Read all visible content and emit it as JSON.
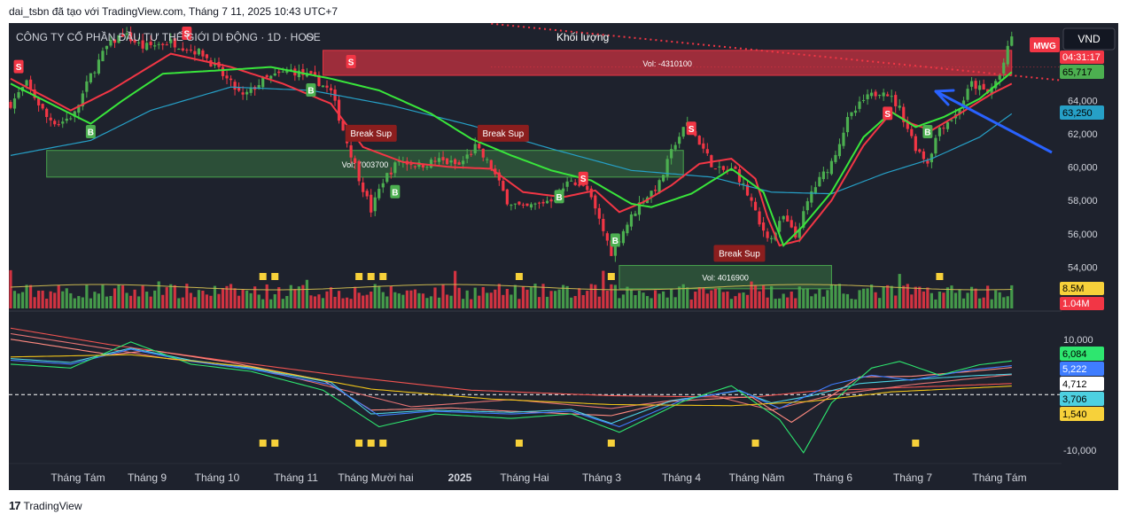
{
  "caption": "dai_tsbn đã tạo với TradingView.com, Tháng 7 11, 2025 10:43 UTC+7",
  "footer": {
    "logo_text": "17",
    "brand": "TradingView"
  },
  "header": {
    "symbol_line": "CÔNG TY CỔ PHẦN ĐẦU TƯ THẾ GIỚI DI ĐỘNG · 1D · HOSE",
    "ohlc_prefix": "O",
    "volume_label": "Khối lượng",
    "currency_button": "VND"
  },
  "price_tags": {
    "ticker": "MWG",
    "countdown": "04:31:17",
    "last_price": "65,717",
    "ma_value": "63,250",
    "volume_ma": "8.5M",
    "volume_last": "1.04M"
  },
  "colors": {
    "background": "#1e222d",
    "up": "#4caf50",
    "down": "#f23645",
    "ma_fast": "#f23645",
    "ma_mid": "#39e63b",
    "ma_slow": "#26a0c7",
    "zone_green": "#4caf50",
    "zone_red": "#f23645",
    "marker": "#f7d13a",
    "arrow": "#2962ff"
  },
  "chart_data": {
    "type": "candlestick",
    "x_labels": [
      "Tháng Tám",
      "Tháng 9",
      "Tháng 10",
      "Tháng 11",
      "Tháng Mười hai",
      "2025",
      "Tháng Hai",
      "Tháng 3",
      "Tháng 4",
      "Tháng Năm",
      "Tháng 6",
      "Tháng 7",
      "Tháng Tám"
    ],
    "y_ticks": [
      "64,000",
      "62,000",
      "60,000",
      "58,000",
      "56,000",
      "54,000"
    ],
    "ylim": [
      52800,
      68000
    ],
    "close_path": [
      [
        0,
        63800
      ],
      [
        4,
        65000
      ],
      [
        9,
        63000
      ],
      [
        12,
        62600
      ],
      [
        16,
        63200
      ],
      [
        20,
        65500
      ],
      [
        24,
        67200
      ],
      [
        28,
        68000
      ],
      [
        33,
        67200
      ],
      [
        40,
        67500
      ],
      [
        48,
        66800
      ],
      [
        53,
        65500
      ],
      [
        58,
        64200
      ],
      [
        63,
        65200
      ],
      [
        70,
        65800
      ],
      [
        76,
        65300
      ],
      [
        80,
        64500
      ],
      [
        84,
        61500
      ],
      [
        87,
        59400
      ],
      [
        90,
        57400
      ],
      [
        93,
        59200
      ],
      [
        97,
        60400
      ],
      [
        102,
        60100
      ],
      [
        107,
        60400
      ],
      [
        112,
        60100
      ],
      [
        116,
        61200
      ],
      [
        120,
        60000
      ],
      [
        124,
        58000
      ],
      [
        128,
        57500
      ],
      [
        132,
        57800
      ],
      [
        136,
        58200
      ],
      [
        140,
        59300
      ],
      [
        144,
        58600
      ],
      [
        147,
        56800
      ],
      [
        150,
        54900
      ],
      [
        153,
        56200
      ],
      [
        157,
        57800
      ],
      [
        162,
        59000
      ],
      [
        166,
        61500
      ],
      [
        169,
        62600
      ],
      [
        172,
        61500
      ],
      [
        176,
        59800
      ],
      [
        181,
        59800
      ],
      [
        185,
        57900
      ],
      [
        187,
        56500
      ],
      [
        190,
        55700
      ],
      [
        193,
        57000
      ],
      [
        196,
        55800
      ],
      [
        200,
        58500
      ],
      [
        205,
        60300
      ],
      [
        209,
        62800
      ],
      [
        213,
        64000
      ],
      [
        218,
        64700
      ],
      [
        222,
        63500
      ],
      [
        226,
        61200
      ],
      [
        229,
        60300
      ],
      [
        232,
        62400
      ],
      [
        236,
        63100
      ],
      [
        240,
        65000
      ],
      [
        244,
        64400
      ],
      [
        247,
        65500
      ],
      [
        250,
        67800
      ]
    ],
    "ma_fast": [
      [
        0,
        65300
      ],
      [
        15,
        63400
      ],
      [
        25,
        64600
      ],
      [
        40,
        66800
      ],
      [
        55,
        66000
      ],
      [
        68,
        65000
      ],
      [
        80,
        63800
      ],
      [
        88,
        61200
      ],
      [
        98,
        60300
      ],
      [
        110,
        60000
      ],
      [
        120,
        59900
      ],
      [
        128,
        58500
      ],
      [
        138,
        58200
      ],
      [
        146,
        58600
      ],
      [
        152,
        57300
      ],
      [
        158,
        57900
      ],
      [
        165,
        58900
      ],
      [
        172,
        60200
      ],
      [
        180,
        60500
      ],
      [
        186,
        59300
      ],
      [
        189,
        57000
      ],
      [
        192,
        55300
      ],
      [
        197,
        55600
      ],
      [
        205,
        58000
      ],
      [
        213,
        61300
      ],
      [
        220,
        63300
      ],
      [
        225,
        62600
      ],
      [
        230,
        62200
      ],
      [
        237,
        63200
      ],
      [
        245,
        64400
      ],
      [
        250,
        65000
      ]
    ],
    "ma_mid": [
      [
        0,
        65000
      ],
      [
        20,
        62600
      ],
      [
        28,
        64000
      ],
      [
        38,
        65600
      ],
      [
        52,
        65800
      ],
      [
        65,
        66000
      ],
      [
        80,
        65300
      ],
      [
        92,
        64600
      ],
      [
        105,
        63200
      ],
      [
        115,
        61700
      ],
      [
        125,
        60700
      ],
      [
        135,
        59800
      ],
      [
        145,
        59200
      ],
      [
        155,
        57800
      ],
      [
        160,
        57600
      ],
      [
        170,
        58400
      ],
      [
        180,
        59900
      ],
      [
        188,
        58500
      ],
      [
        193,
        55300
      ],
      [
        198,
        56500
      ],
      [
        205,
        58500
      ],
      [
        213,
        61800
      ],
      [
        220,
        63300
      ],
      [
        226,
        62400
      ],
      [
        233,
        63000
      ],
      [
        242,
        64100
      ],
      [
        250,
        65700
      ]
    ],
    "ma_slow": [
      [
        0,
        60700
      ],
      [
        20,
        61600
      ],
      [
        35,
        63400
      ],
      [
        55,
        64800
      ],
      [
        75,
        64600
      ],
      [
        95,
        63700
      ],
      [
        115,
        62500
      ],
      [
        135,
        61100
      ],
      [
        155,
        59800
      ],
      [
        175,
        59400
      ],
      [
        190,
        58500
      ],
      [
        205,
        58400
      ],
      [
        218,
        59600
      ],
      [
        230,
        60500
      ],
      [
        242,
        61800
      ],
      [
        250,
        63200
      ]
    ],
    "zones": [
      {
        "type": "support",
        "x0": 9,
        "x1": 168,
        "y_top": 61000,
        "y_bottom": 59400,
        "label": "Vol: 7003700"
      },
      {
        "type": "support",
        "x0": 152,
        "x1": 205,
        "y_top": 54100,
        "y_bottom": 52700,
        "label": "Vol: 4016900"
      },
      {
        "type": "resistance",
        "x0": 78,
        "x1": 250,
        "y_top": 67000,
        "y_bottom": 65500,
        "label": "Vol: -4310100"
      }
    ],
    "signals": [
      {
        "type": "S",
        "x": 2,
        "price": 66000
      },
      {
        "type": "B",
        "x": 20,
        "price": 62100
      },
      {
        "type": "S",
        "x": 44,
        "price": 68000
      },
      {
        "type": "B",
        "x": 75,
        "price": 64600
      },
      {
        "type": "S",
        "x": 85,
        "price": 66300
      },
      {
        "type": "B",
        "x": 96,
        "price": 58500
      },
      {
        "type": "B",
        "x": 137,
        "price": 58200
      },
      {
        "type": "S",
        "x": 143,
        "price": 59300
      },
      {
        "type": "B",
        "x": 151,
        "price": 55600
      },
      {
        "type": "S",
        "x": 170,
        "price": 62300
      },
      {
        "type": "S",
        "x": 219,
        "price": 63200
      },
      {
        "type": "B",
        "x": 229,
        "price": 62100
      }
    ],
    "break_labels": [
      {
        "text": "Break Sup",
        "x": 90,
        "price": 62000
      },
      {
        "text": "Break Sup",
        "x": 123,
        "price": 62000
      },
      {
        "text": "Break Sup",
        "x": 182,
        "price": 54800
      }
    ],
    "volume_markers_x": [
      63,
      66,
      87,
      90,
      93,
      127,
      150,
      232
    ],
    "indicator": {
      "y_ticks": [
        "10,000",
        "-10,000"
      ],
      "ylim": [
        -11000,
        13000
      ],
      "values": [
        "6,084",
        "5,222",
        "4,712",
        "3,706",
        "1,540"
      ],
      "markers_x": [
        63,
        66,
        87,
        90,
        93,
        127,
        150,
        186,
        226
      ],
      "lines": [
        {
          "name": "",
          "color": "#ef5350",
          "points": [
            [
              0,
              12000
            ],
            [
              25,
              9000
            ],
            [
              55,
              6000
            ],
            [
              85,
              3200
            ],
            [
              115,
              800
            ],
            [
              150,
              -200
            ],
            [
              185,
              -500
            ],
            [
              200,
              600
            ],
            [
              220,
              1200
            ],
            [
              250,
              2000
            ]
          ]
        },
        {
          "name": "",
          "color": "#e57373",
          "points": [
            [
              0,
              11000
            ],
            [
              25,
              8200
            ],
            [
              40,
              6400
            ],
            [
              60,
              5000
            ],
            [
              85,
              500
            ],
            [
              100,
              -2200
            ],
            [
              125,
              -900
            ],
            [
              150,
              -2500
            ],
            [
              175,
              -100
            ],
            [
              190,
              -2800
            ],
            [
              205,
              -100
            ],
            [
              225,
              1800
            ],
            [
              250,
              3600
            ]
          ]
        },
        {
          "name": "",
          "color": "#ff8a80",
          "points": [
            [
              0,
              10000
            ],
            [
              25,
              7200
            ],
            [
              35,
              8000
            ],
            [
              55,
              5800
            ],
            [
              78,
              2600
            ],
            [
              90,
              -2800
            ],
            [
              110,
              -2400
            ],
            [
              125,
              -3000
            ],
            [
              150,
              -3800
            ],
            [
              165,
              -1200
            ],
            [
              185,
              -400
            ],
            [
              195,
              -5000
            ],
            [
              212,
              3200
            ],
            [
              225,
              3300
            ],
            [
              240,
              4200
            ],
            [
              250,
              4900
            ]
          ]
        },
        {
          "name": "",
          "color": "#4dd0e1",
          "points": [
            [
              0,
              6500
            ],
            [
              15,
              5800
            ],
            [
              30,
              8400
            ],
            [
              45,
              6200
            ],
            [
              60,
              4800
            ],
            [
              80,
              2200
            ],
            [
              90,
              -3500
            ],
            [
              105,
              -2800
            ],
            [
              125,
              -3200
            ],
            [
              140,
              -2700
            ],
            [
              150,
              -5200
            ],
            [
              165,
              -1100
            ],
            [
              182,
              700
            ],
            [
              190,
              -1500
            ],
            [
              200,
              -200
            ],
            [
              212,
              2000
            ],
            [
              225,
              2700
            ],
            [
              240,
              3400
            ],
            [
              250,
              3706
            ]
          ]
        },
        {
          "name": "",
          "color": "#3f7dff",
          "points": [
            [
              0,
              6200
            ],
            [
              15,
              5500
            ],
            [
              30,
              8200
            ],
            [
              45,
              6000
            ],
            [
              60,
              4600
            ],
            [
              80,
              1800
            ],
            [
              92,
              -3800
            ],
            [
              105,
              -3000
            ],
            [
              125,
              -3500
            ],
            [
              140,
              -3000
            ],
            [
              152,
              -5800
            ],
            [
              168,
              -900
            ],
            [
              182,
              800
            ],
            [
              192,
              -2500
            ],
            [
              205,
              1800
            ],
            [
              215,
              3500
            ],
            [
              225,
              2600
            ],
            [
              240,
              4500
            ],
            [
              250,
              5222
            ]
          ]
        },
        {
          "name": "",
          "color": "#2ee66f",
          "points": [
            [
              0,
              5500
            ],
            [
              15,
              4800
            ],
            [
              30,
              9500
            ],
            [
              45,
              5500
            ],
            [
              60,
              4200
            ],
            [
              78,
              800
            ],
            [
              92,
              -5800
            ],
            [
              106,
              -3500
            ],
            [
              125,
              -4300
            ],
            [
              140,
              -3500
            ],
            [
              152,
              -6800
            ],
            [
              168,
              -1200
            ],
            [
              180,
              1600
            ],
            [
              192,
              -4500
            ],
            [
              198,
              -10500
            ],
            [
              205,
              -1500
            ],
            [
              215,
              4800
            ],
            [
              222,
              6000
            ],
            [
              232,
              3500
            ],
            [
              242,
              5400
            ],
            [
              250,
              6084
            ]
          ]
        },
        {
          "name": "",
          "color": "#f0c419",
          "points": [
            [
              0,
              6800
            ],
            [
              30,
              7200
            ],
            [
              60,
              5000
            ],
            [
              90,
              1000
            ],
            [
              120,
              -800
            ],
            [
              150,
              -1800
            ],
            [
              180,
              -2000
            ],
            [
              200,
              -1200
            ],
            [
              220,
              500
            ],
            [
              250,
              1540
            ]
          ]
        }
      ]
    }
  }
}
